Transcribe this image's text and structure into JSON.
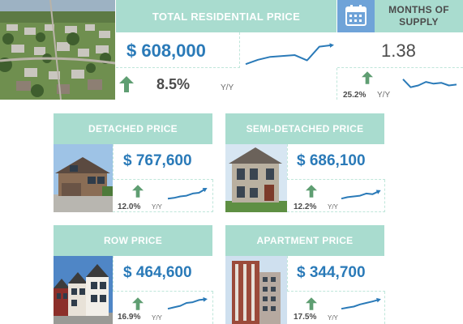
{
  "colors": {
    "accent_mint": "#a9dccf",
    "price_blue": "#2a7ab8",
    "arrow_green": "#5f9e72"
  },
  "total": {
    "title": "TOTAL RESIDENTIAL PRICE",
    "price": "$  608,000",
    "change": "8.5%",
    "change_unit": "Y/Y",
    "trend": [
      5,
      20,
      30,
      33,
      36,
      18,
      65,
      70
    ]
  },
  "supply": {
    "title_line1": "MONTHS OF",
    "title_line2": "SUPPLY",
    "icon": "calendar-icon",
    "value": "1.38",
    "change": "25.2%",
    "change_unit": "Y/Y",
    "trend": [
      60,
      15,
      25,
      45,
      35,
      40,
      25,
      30
    ]
  },
  "cards": [
    {
      "title": "DETACHED PRICE",
      "price": "$  767,600",
      "change": "12.0%",
      "change_unit": "Y/Y",
      "trend": [
        10,
        15,
        25,
        30,
        45,
        50,
        75
      ]
    },
    {
      "title": "SEMI-DETACHED PRICE",
      "price": "$  686,100",
      "change": "12.2%",
      "change_unit": "Y/Y",
      "trend": [
        10,
        20,
        25,
        30,
        45,
        40,
        60
      ]
    },
    {
      "title": "ROW PRICE",
      "price": "$  464,600",
      "change": "16.9%",
      "change_unit": "Y/Y",
      "trend": [
        10,
        20,
        30,
        50,
        55,
        70,
        75
      ]
    },
    {
      "title": "APARTMENT PRICE",
      "price": "$  344,700",
      "change": "17.5%",
      "change_unit": "Y/Y",
      "trend": [
        10,
        18,
        25,
        40,
        50,
        60,
        72
      ]
    }
  ]
}
